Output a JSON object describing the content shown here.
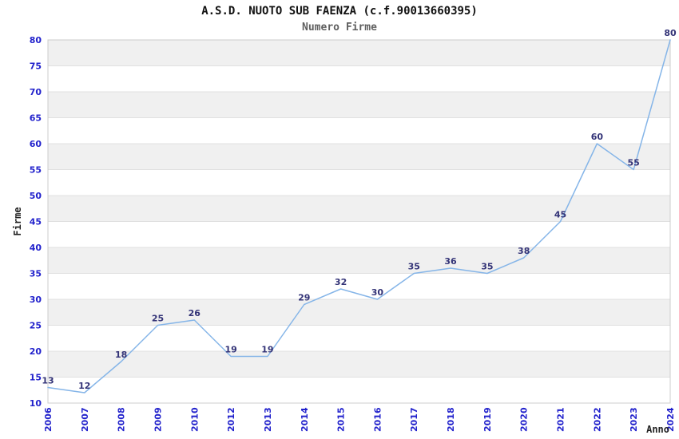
{
  "header": {
    "title": "A.S.D. NUOTO SUB FAENZA (c.f.90013660395)",
    "subtitle": "Numero Firme"
  },
  "chart_data": {
    "type": "line",
    "title": "A.S.D. NUOTO SUB FAENZA (c.f.90013660395)",
    "subtitle": "Numero Firme",
    "categories": [
      "2006",
      "2007",
      "2008",
      "2009",
      "2010",
      "2012",
      "2013",
      "2014",
      "2015",
      "2016",
      "2017",
      "2018",
      "2019",
      "2020",
      "2021",
      "2022",
      "2023",
      "2024"
    ],
    "values": [
      13,
      12,
      18,
      25,
      26,
      19,
      19,
      29,
      32,
      30,
      35,
      36,
      35,
      38,
      45,
      60,
      55,
      80
    ],
    "xlabel": "Anno",
    "ylabel": "Firme",
    "ylim": [
      10,
      80
    ],
    "ytick_step": 5,
    "yticks": [
      10,
      15,
      20,
      25,
      30,
      35,
      40,
      45,
      50,
      55,
      60,
      65,
      70,
      75,
      80
    ],
    "xtick_rotation": 90,
    "grid": "horizontal-bands",
    "legend": "none",
    "data_labels": true,
    "colors": {
      "line": "#85b5e8",
      "tick_label": "#2222cc",
      "data_label": "#333377",
      "band_gray": "#f0f0f0",
      "band_white": "#ffffff",
      "gridline": "#e0e0e0",
      "plot_border": "#cccccc",
      "title": "#111111",
      "subtitle": "#5f5f5f",
      "axis_title": "#222222",
      "background": "#ffffff"
    }
  }
}
